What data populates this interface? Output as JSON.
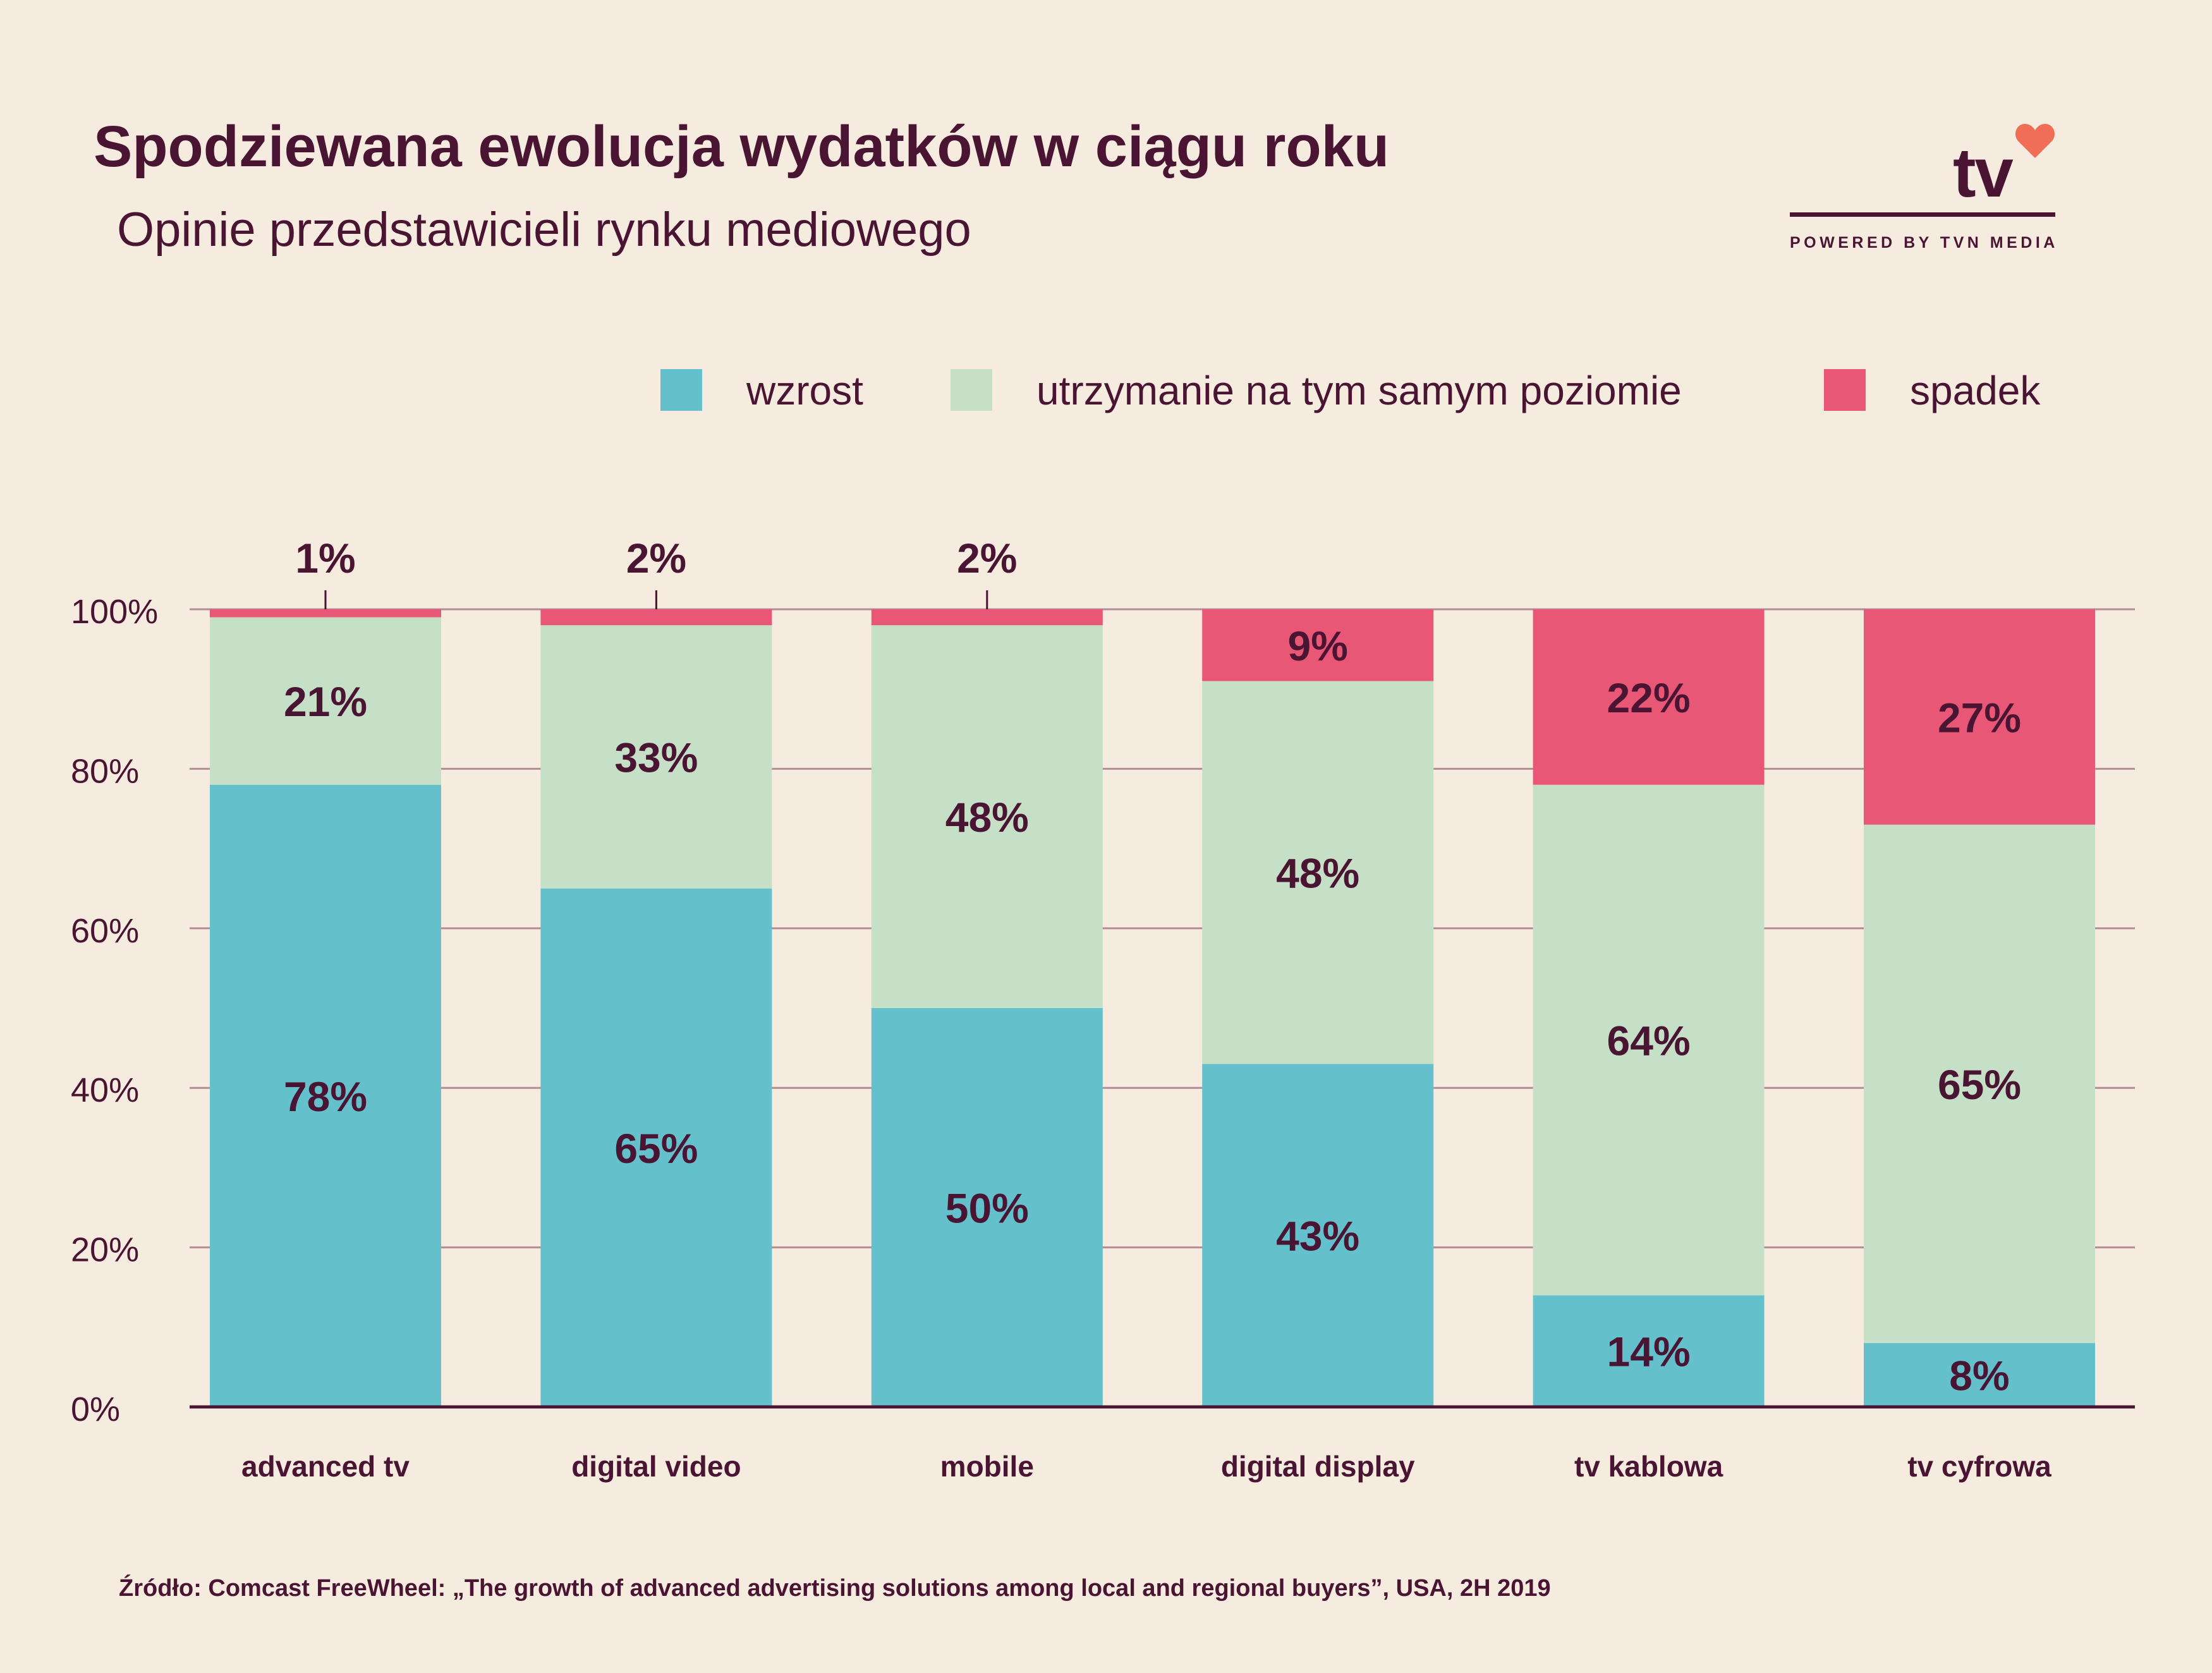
{
  "header": {
    "title": "Spodziewana ewolucja wydatków w ciągu roku",
    "subtitle": "Opinie przedstawicieli rynku mediowego"
  },
  "logo": {
    "text": "tv",
    "tagline": "POWERED BY TVN MEDIA",
    "heart_color": "#f06e55"
  },
  "legend": [
    {
      "label": "wzrost",
      "color": "#64c1cb"
    },
    {
      "label": "utrzymanie na tym samym poziomie",
      "color": "#c6e0c8"
    },
    {
      "label": "spadek",
      "color": "#e95776"
    }
  ],
  "chart_data": {
    "type": "bar",
    "stacked": true,
    "categories": [
      "advanced tv",
      "digital video",
      "mobile",
      "digital display",
      "tv kablowa",
      "tv cyfrowa"
    ],
    "series": [
      {
        "name": "wzrost",
        "values": [
          78,
          65,
          50,
          43,
          14,
          8
        ],
        "labels": [
          "78%",
          "65%",
          "50%",
          "43%",
          "14%",
          "8%"
        ]
      },
      {
        "name": "utrzymanie na tym samym poziomie",
        "values": [
          21,
          33,
          48,
          48,
          64,
          65
        ],
        "labels": [
          "21%",
          "33%",
          "48%",
          "48%",
          "64%",
          "65%"
        ]
      },
      {
        "name": "spadek",
        "values": [
          1,
          2,
          2,
          9,
          22,
          27
        ],
        "labels": [
          "1%",
          "2%",
          "2%",
          "9%",
          "22%",
          "27%"
        ]
      }
    ],
    "yticks": [
      "0%",
      "20%",
      "40%",
      "60%",
      "80%",
      "100%"
    ],
    "ylim": [
      0,
      100
    ],
    "grid": true,
    "legend_position": "top-right"
  },
  "source": "Źródło: Comcast FreeWheel: „The growth of advanced advertising solutions among local and regional buyers”, USA, 2H 2019"
}
